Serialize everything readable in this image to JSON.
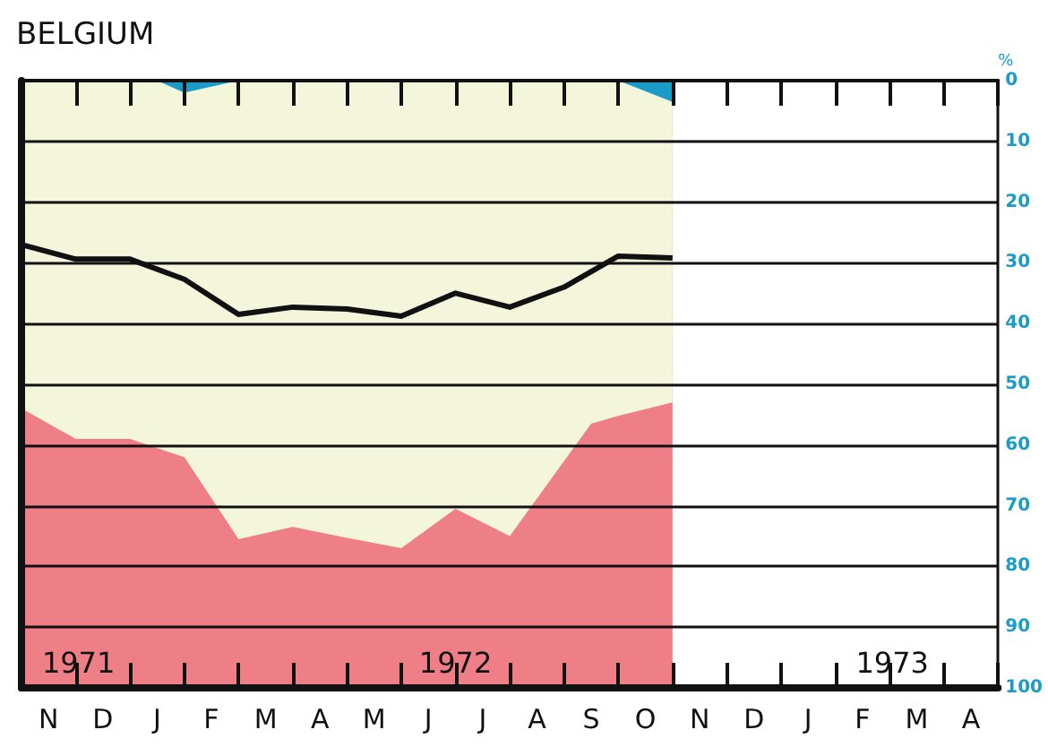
{
  "chart_data": {
    "type": "area",
    "title": "BELGIUM",
    "ylabel": "%",
    "stacked": true,
    "annotations": [
      "1971",
      "1972",
      "1973"
    ],
    "categories": [
      null,
      "N",
      null,
      "D",
      null,
      "J",
      null,
      "F",
      null,
      "M",
      null,
      "A",
      null,
      "M",
      null,
      "J",
      null,
      "J",
      null,
      "A",
      null,
      "S",
      null,
      "O",
      null,
      "N",
      null,
      "D",
      null,
      "J",
      null,
      "F",
      null,
      "M",
      null,
      "A",
      null
    ],
    "ylim": [
      100,
      0
    ],
    "yticks": [
      0,
      10,
      20,
      30,
      40,
      50,
      60,
      70,
      80,
      90,
      100
    ],
    "grid": "y",
    "series": [
      {
        "color": "#1a9bc8",
        "values": [
          0,
          null,
          0,
          null,
          0,
          0,
          2,
          null,
          0,
          null,
          0,
          null,
          0,
          null,
          0,
          null,
          0,
          null,
          0,
          null,
          null,
          0,
          0,
          null,
          3.5,
          null,
          null,
          null,
          null,
          null,
          null,
          null,
          null,
          null,
          null,
          null,
          null
        ]
      },
      {
        "color": "#f4f6dc",
        "values": [
          54,
          null,
          59,
          null,
          59,
          60.5,
          60,
          null,
          75.5,
          null,
          73.5,
          null,
          75.3,
          null,
          77,
          null,
          70.5,
          null,
          75,
          null,
          null,
          56.5,
          55.2,
          null,
          49.5,
          null,
          null,
          null,
          null,
          null,
          null,
          null,
          null,
          null,
          null,
          null,
          null
        ]
      },
      {
        "color": "#ee7f86",
        "values": [
          46,
          null,
          41,
          null,
          41,
          39.5,
          38,
          null,
          24.5,
          null,
          26.5,
          null,
          24.7,
          null,
          23,
          null,
          29.5,
          null,
          25,
          null,
          null,
          43.5,
          44.8,
          null,
          47,
          null,
          null,
          null,
          null,
          null,
          null,
          null,
          null,
          null,
          null,
          null,
          null
        ]
      },
      {
        "type": "line",
        "color": "#111111",
        "values": [
          27,
          null,
          29.4,
          null,
          29.4,
          null,
          32.7,
          null,
          38.5,
          null,
          37.3,
          null,
          37.6,
          null,
          38.8,
          null,
          35,
          null,
          37.3,
          null,
          34,
          null,
          28.9,
          null,
          29.2,
          null,
          null,
          null,
          null,
          null,
          null,
          null,
          null,
          null,
          null,
          null,
          null
        ]
      }
    ]
  }
}
